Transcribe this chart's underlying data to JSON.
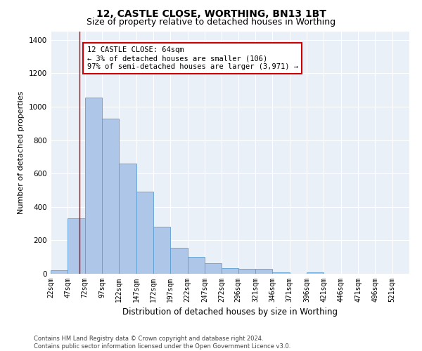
{
  "title_line1": "12, CASTLE CLOSE, WORTHING, BN13 1BT",
  "title_line2": "Size of property relative to detached houses in Worthing",
  "xlabel": "Distribution of detached houses by size in Worthing",
  "ylabel": "Number of detached properties",
  "footnote": "Contains HM Land Registry data © Crown copyright and database right 2024.\nContains public sector information licensed under the Open Government Licence v3.0.",
  "bar_edges": [
    22,
    47,
    72,
    97,
    122,
    147,
    172,
    197,
    222,
    247,
    272,
    296,
    321,
    346,
    371,
    396,
    421,
    446,
    471,
    496,
    521
  ],
  "bar_heights": [
    20,
    330,
    1055,
    930,
    660,
    490,
    280,
    155,
    100,
    65,
    35,
    30,
    30,
    10,
    0,
    10,
    0,
    0,
    0,
    0,
    0
  ],
  "bar_color": "#aec6e8",
  "bar_edgecolor": "#5a9fd4",
  "bg_color": "#eaf0f8",
  "grid_color": "#ffffff",
  "annotation_text": "12 CASTLE CLOSE: 64sqm\n← 3% of detached houses are smaller (106)\n97% of semi-detached houses are larger (3,971) →",
  "vline_x": 64,
  "vline_color": "#cc0000",
  "box_color": "#cc0000",
  "ylim": [
    0,
    1450
  ],
  "yticks": [
    0,
    200,
    400,
    600,
    800,
    1000,
    1200,
    1400
  ],
  "tick_labels": [
    "22sqm",
    "47sqm",
    "72sqm",
    "97sqm",
    "122sqm",
    "147sqm",
    "172sqm",
    "197sqm",
    "222sqm",
    "247sqm",
    "272sqm",
    "296sqm",
    "321sqm",
    "346sqm",
    "371sqm",
    "396sqm",
    "421sqm",
    "446sqm",
    "471sqm",
    "496sqm",
    "521sqm"
  ],
  "title1_fontsize": 10,
  "title2_fontsize": 9,
  "xlabel_fontsize": 8.5,
  "ylabel_fontsize": 8,
  "footnote_fontsize": 6,
  "tick_fontsize": 7,
  "ytick_fontsize": 7.5,
  "annotation_fontsize": 7.5
}
